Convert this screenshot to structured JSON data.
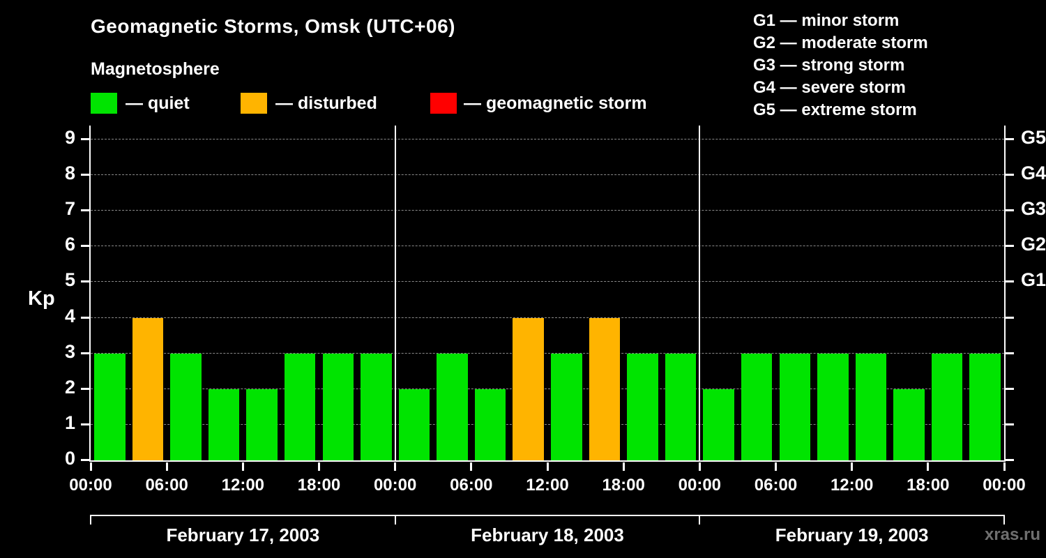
{
  "header": {
    "title": "Geomagnetic Storms, Omsk (UTC+06)",
    "subtitle": "Magnetosphere"
  },
  "legend": {
    "items": [
      {
        "status": "quiet",
        "label": "— quiet",
        "color": "#00e400"
      },
      {
        "status": "disturbed",
        "label": "— disturbed",
        "color": "#ffb400"
      },
      {
        "status": "storm",
        "label": "— geomagnetic storm",
        "color": "#ff0000"
      }
    ]
  },
  "g_scale": {
    "items": [
      {
        "code": "G1",
        "label": "G1 — minor storm",
        "kp": 5
      },
      {
        "code": "G2",
        "label": "G2 — moderate storm",
        "kp": 6
      },
      {
        "code": "G3",
        "label": "G3 — strong storm",
        "kp": 7
      },
      {
        "code": "G4",
        "label": "G4 — severe storm",
        "kp": 8
      },
      {
        "code": "G5",
        "label": "G5 — extreme storm",
        "kp": 9
      }
    ]
  },
  "axes": {
    "y_label": "Kp",
    "y_ticks": [
      0,
      1,
      2,
      3,
      4,
      5,
      6,
      7,
      8,
      9
    ],
    "x_tick_labels": [
      "00:00",
      "06:00",
      "12:00",
      "18:00"
    ],
    "x_end_label": "00:00"
  },
  "chart_data": {
    "type": "bar",
    "title": "Geomagnetic Storms, Omsk (UTC+06)",
    "ylabel": "Kp",
    "ylim": [
      0,
      9.5
    ],
    "grid": true,
    "hours_per_bar": 3,
    "thresholds": {
      "disturbed_min": 4,
      "storm_min": 5
    },
    "colors": {
      "quiet": "#00e400",
      "disturbed": "#ffb400",
      "storm": "#ff0000"
    },
    "days": [
      {
        "date": "February 17, 2003",
        "values": [
          3,
          4,
          3,
          2,
          2,
          3,
          3,
          3
        ]
      },
      {
        "date": "February 18, 2003",
        "values": [
          2,
          3,
          2,
          4,
          3,
          4,
          3,
          3
        ]
      },
      {
        "date": "February 19, 2003",
        "values": [
          2,
          3,
          3,
          3,
          3,
          2,
          3,
          3
        ]
      }
    ]
  },
  "watermark": "xras.ru"
}
